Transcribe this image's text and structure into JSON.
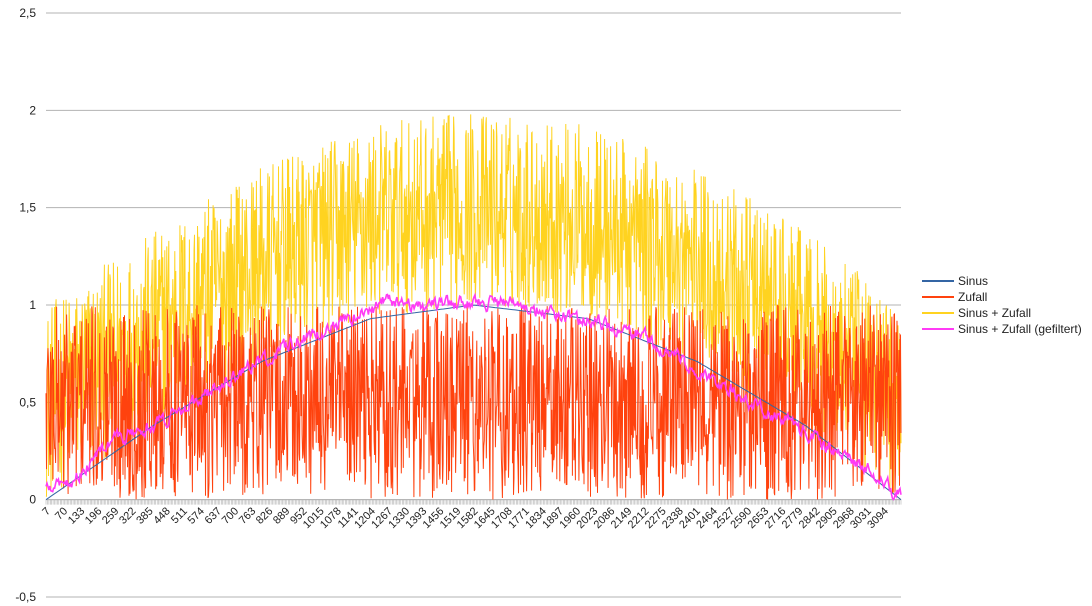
{
  "chart_data": {
    "type": "line",
    "title": "",
    "xlabel": "",
    "ylabel": "",
    "x_range": [
      7,
      3150
    ],
    "ylim": [
      -0.5,
      2.5
    ],
    "y_ticks": [
      -0.5,
      0,
      0.5,
      1,
      1.5,
      2,
      2.5
    ],
    "y_tick_labels": [
      "-0,5",
      "0",
      "0,5",
      "1",
      "1,5",
      "2",
      "2,5"
    ],
    "x_tick_labels": [
      "7",
      "70",
      "133",
      "196",
      "259",
      "322",
      "385",
      "448",
      "511",
      "574",
      "637",
      "700",
      "763",
      "826",
      "889",
      "952",
      "1015",
      "1078",
      "1141",
      "1204",
      "1267",
      "1330",
      "1393",
      "1456",
      "1519",
      "1582",
      "1645",
      "1708",
      "1771",
      "1834",
      "1897",
      "1960",
      "2023",
      "2086",
      "2149",
      "2212",
      "2275",
      "2338",
      "2401",
      "2464",
      "2527",
      "2590",
      "2653",
      "2716",
      "2779",
      "2842",
      "2905",
      "2968",
      "3031",
      "3094"
    ],
    "grid": "horizontal",
    "legend_position": "right",
    "series": [
      {
        "name": "Sinus",
        "color": "#3465a4",
        "x": [
          7,
          400,
          800,
          1200,
          1578,
          2000,
          2400,
          2800,
          3150
        ],
        "y": [
          0.0,
          0.38,
          0.71,
          0.93,
          1.0,
          0.93,
          0.71,
          0.38,
          0.0
        ]
      },
      {
        "name": "Zufall",
        "color": "#ff420e",
        "noise": "uniform random values between 0 and 1 (dense, ~3150 samples)",
        "envelope_x": [
          7,
          400,
          800,
          1200,
          1578,
          2000,
          2400,
          2800,
          3150
        ],
        "envelope_y_max": [
          1.0,
          1.0,
          1.0,
          1.0,
          1.0,
          1.0,
          1.0,
          1.0,
          1.0
        ],
        "envelope_y_min": [
          0.0,
          0.0,
          0.0,
          0.0,
          0.0,
          0.0,
          0.0,
          0.0,
          0.0
        ]
      },
      {
        "name": "Sinus + Zufall",
        "color": "#ffd320",
        "envelope_x": [
          7,
          400,
          800,
          1200,
          1578,
          2000,
          2400,
          2800,
          3150
        ],
        "envelope_y_max": [
          1.0,
          1.38,
          1.71,
          1.93,
          2.0,
          1.93,
          1.71,
          1.38,
          1.0
        ],
        "envelope_y_min": [
          0.0,
          0.38,
          0.71,
          0.93,
          1.0,
          0.93,
          0.71,
          0.38,
          0.0
        ]
      },
      {
        "name": "Sinus + Zufall (gefiltert)",
        "color": "#ff3bf5",
        "x": [
          7,
          120,
          250,
          400,
          600,
          800,
          1000,
          1200,
          1260,
          1400,
          1578,
          1750,
          2000,
          2200,
          2400,
          2600,
          2800,
          3000,
          3150
        ],
        "y": [
          0.05,
          0.12,
          0.3,
          0.38,
          0.55,
          0.72,
          0.86,
          0.97,
          1.03,
          0.99,
          1.02,
          1.0,
          0.92,
          0.84,
          0.66,
          0.5,
          0.35,
          0.18,
          0.02
        ]
      }
    ]
  }
}
